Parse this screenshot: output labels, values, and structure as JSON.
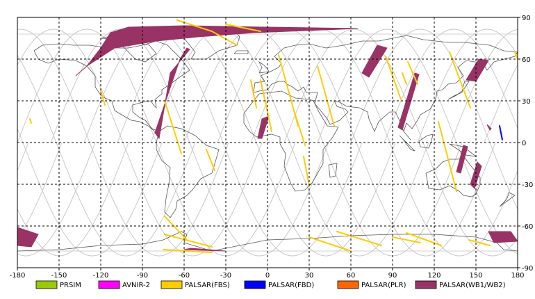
{
  "chart_data": {
    "type": "map",
    "title": "",
    "projection": "equirectangular",
    "xlim": [
      -180,
      180
    ],
    "ylim": [
      -90,
      90
    ],
    "x_ticks": [
      -180,
      -150,
      -120,
      -90,
      -60,
      -30,
      0,
      30,
      60,
      90,
      120,
      150,
      180
    ],
    "y_ticks": [
      90,
      60,
      30,
      0,
      -30,
      -60,
      -90
    ],
    "x_tick_labels": [
      "-180",
      "-150",
      "-120",
      "-90",
      "-60",
      "-30",
      "0",
      "30",
      "60",
      "90",
      "120",
      "150",
      "180"
    ],
    "y_tick_labels": [
      "90",
      "60",
      "30",
      "0",
      "-30",
      "-60",
      "-90"
    ],
    "grid": true,
    "legend_position": "bottom",
    "legend": [
      {
        "name": "PRSIM",
        "color": "#99cc00"
      },
      {
        "name": "AVNIR-2",
        "color": "#ff00ff"
      },
      {
        "name": "PALSAR(FBS)",
        "color": "#ffcc00"
      },
      {
        "name": "PALSAR(FBD)",
        "color": "#0000ff"
      },
      {
        "name": "PALSAR(PLR)",
        "color": "#ff6600"
      },
      {
        "name": "PALSAR(WB1/WB2)",
        "color": "#993366"
      }
    ],
    "swaths": [
      {
        "sensor": "PALSAR(WB1/WB2)",
        "path": [
          [
            -113,
            79
          ],
          [
            -100,
            83
          ],
          [
            -60,
            84
          ],
          [
            0,
            83
          ],
          [
            65,
            82
          ],
          [
            -10,
            79
          ],
          [
            -50,
            76
          ],
          [
            -80,
            73
          ],
          [
            -110,
            68
          ],
          [
            -130,
            55
          ],
          [
            -138,
            48
          ],
          [
            -130,
            55
          ],
          [
            -120,
            68
          ],
          [
            -113,
            79
          ]
        ]
      },
      {
        "sensor": "PALSAR(WB1/WB2)",
        "path": [
          [
            -180,
            -61
          ],
          [
            -165,
            -66
          ],
          [
            -170,
            -75
          ],
          [
            -180,
            -74
          ]
        ]
      },
      {
        "sensor": "PALSAR(WB1/WB2)",
        "path": [
          [
            -58,
            68
          ],
          [
            -63,
            60
          ],
          [
            -81,
            7
          ],
          [
            -78,
            3
          ],
          [
            -70,
            50
          ],
          [
            -56,
            67
          ]
        ]
      },
      {
        "sensor": "PALSAR(WB1/WB2)",
        "path": [
          [
            -4,
            17
          ],
          [
            1,
            19
          ],
          [
            -4,
            3
          ],
          [
            -7,
            3
          ]
        ]
      },
      {
        "sensor": "PALSAR(WB1/WB2)",
        "path": [
          [
            79,
            70
          ],
          [
            86,
            68
          ],
          [
            73,
            47
          ],
          [
            68,
            50
          ]
        ]
      },
      {
        "sensor": "PALSAR(WB1/WB2)",
        "path": [
          [
            106,
            50
          ],
          [
            109,
            49
          ],
          [
            97,
            9
          ],
          [
            94,
            11
          ]
        ]
      },
      {
        "sensor": "PALSAR(WB1/WB2)",
        "path": [
          [
            152,
            60
          ],
          [
            159,
            59
          ],
          [
            150,
            44
          ],
          [
            143,
            45
          ]
        ]
      },
      {
        "sensor": "PALSAR(WB1/WB2)",
        "path": [
          [
            141,
            -2
          ],
          [
            144,
            -3
          ],
          [
            139,
            -22
          ],
          [
            136,
            -21
          ]
        ]
      },
      {
        "sensor": "PALSAR(WB1/WB2)",
        "path": [
          [
            151,
            -14
          ],
          [
            154,
            -17
          ],
          [
            149,
            -33
          ],
          [
            146,
            -30
          ]
        ]
      },
      {
        "sensor": "PALSAR(WB1/WB2)",
        "path": [
          [
            159,
            -64
          ],
          [
            175,
            -64
          ],
          [
            180,
            -71
          ],
          [
            163,
            -72
          ]
        ]
      },
      {
        "sensor": "PALSAR(WB1/WB2)",
        "path": [
          [
            -55,
            -76
          ],
          [
            -30,
            -78
          ],
          [
            -60,
            -77
          ]
        ]
      },
      {
        "sensor": "PALSAR(WB1/WB2)",
        "path": [
          [
            158,
            13
          ],
          [
            161,
            10
          ],
          [
            160,
            9
          ]
        ]
      },
      {
        "sensor": "PALSAR(FBS)",
        "path": [
          [
            -65,
            88
          ],
          [
            -40,
            80
          ],
          [
            -22,
            70
          ]
        ]
      },
      {
        "sensor": "PALSAR(FBS)",
        "path": [
          [
            -30,
            85
          ],
          [
            -5,
            80
          ]
        ]
      },
      {
        "sensor": "PALSAR(FBS)",
        "path": [
          [
            -74,
            30
          ],
          [
            -62,
            -8
          ]
        ]
      },
      {
        "sensor": "PALSAR(FBS)",
        "path": [
          [
            -44,
            -5
          ],
          [
            -38,
            -20
          ]
        ]
      },
      {
        "sensor": "PALSAR(FBS)",
        "path": [
          [
            -12,
            45
          ],
          [
            -8,
            25
          ]
        ]
      },
      {
        "sensor": "PALSAR(FBS)",
        "path": [
          [
            8,
            63
          ],
          [
            22,
            12
          ]
        ]
      },
      {
        "sensor": "PALSAR(FBS)",
        "path": [
          [
            20,
            20
          ],
          [
            27,
            -2
          ]
        ]
      },
      {
        "sensor": "PALSAR(FBS)",
        "path": [
          [
            -5,
            45
          ],
          [
            3,
            8
          ]
        ]
      },
      {
        "sensor": "PALSAR(FBS)",
        "path": [
          [
            36,
            55
          ],
          [
            48,
            12
          ]
        ]
      },
      {
        "sensor": "PALSAR(FBS)",
        "path": [
          [
            26,
            -10
          ],
          [
            30,
            -31
          ]
        ]
      },
      {
        "sensor": "PALSAR(FBS)",
        "path": [
          [
            97,
            50
          ],
          [
            100,
            42
          ]
        ]
      },
      {
        "sensor": "PALSAR(FBS)",
        "path": [
          [
            101,
            58
          ],
          [
            108,
            42
          ]
        ]
      },
      {
        "sensor": "PALSAR(FBS)",
        "path": [
          [
            131,
            65
          ],
          [
            146,
            25
          ]
        ]
      },
      {
        "sensor": "PALSAR(FBS)",
        "path": [
          [
            123,
            15
          ],
          [
            136,
            -35
          ]
        ]
      },
      {
        "sensor": "PALSAR(FBS)",
        "path": [
          [
            85,
            62
          ],
          [
            96,
            31
          ]
        ]
      },
      {
        "sensor": "PALSAR(FBS)",
        "path": [
          [
            -74,
            -53
          ],
          [
            -58,
            -70
          ]
        ]
      },
      {
        "sensor": "PALSAR(FBS)",
        "path": [
          [
            -74,
            -66
          ],
          [
            -40,
            -75
          ]
        ]
      },
      {
        "sensor": "PALSAR(FBS)",
        "path": [
          [
            -75,
            -77
          ],
          [
            -40,
            -79
          ]
        ]
      },
      {
        "sensor": "PALSAR(FBS)",
        "path": [
          [
            30,
            -68
          ],
          [
            60,
            -78
          ]
        ]
      },
      {
        "sensor": "PALSAR(FBS)",
        "path": [
          [
            50,
            -64
          ],
          [
            82,
            -74
          ]
        ]
      },
      {
        "sensor": "PALSAR(FBS)",
        "path": [
          [
            100,
            -65
          ],
          [
            125,
            -74
          ]
        ]
      },
      {
        "sensor": "PALSAR(FBS)",
        "path": [
          [
            90,
            -68
          ],
          [
            110,
            -72
          ]
        ]
      },
      {
        "sensor": "PALSAR(FBS)",
        "path": [
          [
            145,
            -70
          ],
          [
            160,
            -74
          ]
        ]
      },
      {
        "sensor": "PALSAR(FBS)",
        "path": [
          [
            -120,
            37
          ],
          [
            -117,
            27
          ]
        ]
      },
      {
        "sensor": "PALSAR(FBS)",
        "path": [
          [
            -171,
            17
          ],
          [
            -170,
            14
          ]
        ]
      },
      {
        "sensor": "PALSAR(FBS)",
        "path": [
          [
            178,
            65
          ],
          [
            180,
            60
          ]
        ]
      },
      {
        "sensor": "PALSAR(FBD)",
        "path": [
          [
            167,
            12
          ],
          [
            169,
            2
          ]
        ]
      }
    ]
  }
}
